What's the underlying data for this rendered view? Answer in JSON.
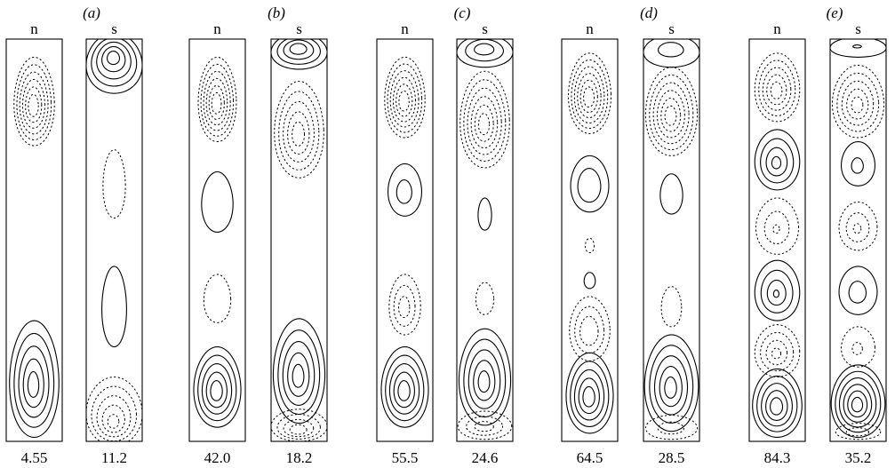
{
  "figure": {
    "panels": [
      {
        "label": "(a)",
        "cells": [
          {
            "head": "n",
            "value": "4.55",
            "cells": [
              {
                "style": "dash",
                "cy": 0.155,
                "rx": 0.36,
                "ry": 0.11,
                "n": 6,
                "minFrac": 0.25
              },
              {
                "style": "solid",
                "cy": 0.845,
                "rx": 0.44,
                "ry": 0.145,
                "n": 5,
                "minFrac": 0.22
              }
            ]
          },
          {
            "head": "s",
            "value": "11.2",
            "cells": [
              {
                "style": "solid",
                "cy": 0.06,
                "rx": 0.5,
                "ry": 0.075,
                "n": 5,
                "minFrac": 0.22,
                "shiftY": -0.35
              },
              {
                "style": "dash",
                "cy": 0.36,
                "rx": 0.2,
                "ry": 0.085,
                "n": 1,
                "minFrac": 1
              },
              {
                "style": "solid",
                "cy": 0.665,
                "rx": 0.22,
                "ry": 0.1,
                "n": 1,
                "minFrac": 1
              },
              {
                "style": "dash",
                "cy": 0.925,
                "rx": 0.5,
                "ry": 0.085,
                "n": 5,
                "minFrac": 0.2,
                "shiftY": 0.25
              }
            ]
          }
        ]
      },
      {
        "label": "(b)",
        "cells": [
          {
            "head": "n",
            "value": "42.0",
            "cells": [
              {
                "style": "dash",
                "cy": 0.15,
                "rx": 0.34,
                "ry": 0.105,
                "n": 6,
                "minFrac": 0.25
              },
              {
                "style": "solid",
                "cy": 0.405,
                "rx": 0.28,
                "ry": 0.075,
                "n": 1,
                "minFrac": 1
              },
              {
                "style": "dash",
                "cy": 0.645,
                "rx": 0.24,
                "ry": 0.06,
                "n": 1,
                "minFrac": 1
              },
              {
                "style": "solid",
                "cy": 0.865,
                "rx": 0.42,
                "ry": 0.1,
                "n": 5,
                "minFrac": 0.25
              }
            ]
          },
          {
            "head": "s",
            "value": "18.2",
            "cells": [
              {
                "style": "solid",
                "cy": 0.03,
                "rx": 0.5,
                "ry": 0.045,
                "n": 4,
                "minFrac": 0.3,
                "shiftY": -0.3
              },
              {
                "style": "dash",
                "cy": 0.225,
                "rx": 0.44,
                "ry": 0.12,
                "n": 5,
                "minFrac": 0.25
              },
              {
                "style": "solid",
                "cy": 0.825,
                "rx": 0.46,
                "ry": 0.13,
                "n": 5,
                "minFrac": 0.22
              },
              {
                "style": "dash",
                "cy": 0.96,
                "rx": 0.5,
                "ry": 0.04,
                "n": 4,
                "minFrac": 0.3,
                "shiftY": 0.25
              }
            ]
          }
        ]
      },
      {
        "label": "(c)",
        "cells": [
          {
            "head": "n",
            "value": "55.5",
            "cells": [
              {
                "style": "dash",
                "cy": 0.145,
                "rx": 0.36,
                "ry": 0.1,
                "n": 6,
                "minFrac": 0.25
              },
              {
                "style": "solid",
                "cy": 0.375,
                "rx": 0.3,
                "ry": 0.065,
                "n": 2,
                "minFrac": 0.45
              },
              {
                "style": "dash",
                "cy": 0.66,
                "rx": 0.28,
                "ry": 0.075,
                "n": 3,
                "minFrac": 0.35
              },
              {
                "style": "solid",
                "cy": 0.865,
                "rx": 0.42,
                "ry": 0.1,
                "n": 5,
                "minFrac": 0.25
              }
            ]
          },
          {
            "head": "s",
            "value": "24.6",
            "cells": [
              {
                "style": "solid",
                "cy": 0.03,
                "rx": 0.5,
                "ry": 0.04,
                "n": 3,
                "minFrac": 0.35,
                "shiftY": -0.3
              },
              {
                "style": "dash",
                "cy": 0.2,
                "rx": 0.44,
                "ry": 0.12,
                "n": 6,
                "minFrac": 0.22
              },
              {
                "style": "solid",
                "cy": 0.435,
                "rx": 0.12,
                "ry": 0.04,
                "n": 1,
                "minFrac": 1
              },
              {
                "style": "dash",
                "cy": 0.645,
                "rx": 0.16,
                "ry": 0.04,
                "n": 1,
                "minFrac": 1
              },
              {
                "style": "solid",
                "cy": 0.84,
                "rx": 0.46,
                "ry": 0.12,
                "n": 5,
                "minFrac": 0.22
              },
              {
                "style": "dash",
                "cy": 0.96,
                "rx": 0.48,
                "ry": 0.035,
                "n": 3,
                "minFrac": 0.35
              }
            ]
          }
        ]
      },
      {
        "label": "(d)",
        "cells": [
          {
            "head": "n",
            "value": "64.5",
            "cells": [
              {
                "style": "dash",
                "cy": 0.135,
                "rx": 0.38,
                "ry": 0.1,
                "n": 6,
                "minFrac": 0.25
              },
              {
                "style": "solid",
                "cy": 0.36,
                "rx": 0.34,
                "ry": 0.07,
                "n": 2,
                "minFrac": 0.6
              },
              {
                "style": "dash",
                "cy": 0.513,
                "rx": 0.08,
                "ry": 0.018,
                "n": 1,
                "minFrac": 1
              },
              {
                "style": "solid",
                "cy": 0.6,
                "rx": 0.1,
                "ry": 0.02,
                "n": 1,
                "minFrac": 1
              },
              {
                "style": "dash",
                "cy": 0.72,
                "rx": 0.36,
                "ry": 0.08,
                "n": 3,
                "minFrac": 0.45
              },
              {
                "style": "solid",
                "cy": 0.88,
                "rx": 0.42,
                "ry": 0.1,
                "n": 5,
                "minFrac": 0.25
              }
            ]
          },
          {
            "head": "s",
            "value": "28.5",
            "cells": [
              {
                "style": "solid",
                "cy": 0.03,
                "rx": 0.5,
                "ry": 0.04,
                "n": 2,
                "minFrac": 0.45,
                "shiftY": -0.3
              },
              {
                "style": "dash",
                "cy": 0.18,
                "rx": 0.46,
                "ry": 0.11,
                "n": 6,
                "minFrac": 0.22
              },
              {
                "style": "solid",
                "cy": 0.385,
                "rx": 0.2,
                "ry": 0.05,
                "n": 1,
                "minFrac": 1
              },
              {
                "style": "dash",
                "cy": 0.665,
                "rx": 0.18,
                "ry": 0.05,
                "n": 1,
                "minFrac": 1
              },
              {
                "style": "solid",
                "cy": 0.855,
                "rx": 0.48,
                "ry": 0.12,
                "n": 5,
                "minFrac": 0.22
              },
              {
                "style": "dash",
                "cy": 0.965,
                "rx": 0.46,
                "ry": 0.03,
                "n": 2,
                "minFrac": 0.5
              }
            ]
          }
        ]
      },
      {
        "label": "(e)",
        "cells": [
          {
            "head": "n",
            "value": "84.3",
            "cells": [
              {
                "style": "dash",
                "cy": 0.12,
                "rx": 0.4,
                "ry": 0.085,
                "n": 5,
                "minFrac": 0.25
              },
              {
                "style": "solid",
                "cy": 0.3,
                "rx": 0.4,
                "ry": 0.075,
                "n": 4,
                "minFrac": 0.2
              },
              {
                "style": "dash",
                "cy": 0.465,
                "rx": 0.38,
                "ry": 0.07,
                "n": 3,
                "minFrac": 0.15
              },
              {
                "style": "solid",
                "cy": 0.625,
                "rx": 0.4,
                "ry": 0.075,
                "n": 4,
                "minFrac": 0.12
              },
              {
                "style": "dash",
                "cy": 0.775,
                "rx": 0.4,
                "ry": 0.065,
                "n": 4,
                "minFrac": 0.2
              },
              {
                "style": "solid",
                "cy": 0.905,
                "rx": 0.44,
                "ry": 0.085,
                "n": 5,
                "minFrac": 0.25
              }
            ]
          },
          {
            "head": "s",
            "value": "35.2",
            "cells": [
              {
                "style": "solid",
                "cy": 0.02,
                "rx": 0.5,
                "ry": 0.025,
                "n": 2,
                "minFrac": 0.15,
                "shiftY": -0.2
              },
              {
                "style": "dash",
                "cy": 0.155,
                "rx": 0.46,
                "ry": 0.09,
                "n": 5,
                "minFrac": 0.22
              },
              {
                "style": "solid",
                "cy": 0.31,
                "rx": 0.3,
                "ry": 0.055,
                "n": 2,
                "minFrac": 0.35
              },
              {
                "style": "dash",
                "cy": 0.465,
                "rx": 0.34,
                "ry": 0.06,
                "n": 3,
                "minFrac": 0.2
              },
              {
                "style": "solid",
                "cy": 0.625,
                "rx": 0.34,
                "ry": 0.06,
                "n": 2,
                "minFrac": 0.45
              },
              {
                "style": "dash",
                "cy": 0.765,
                "rx": 0.3,
                "ry": 0.05,
                "n": 2,
                "minFrac": 0.3
              },
              {
                "style": "solid",
                "cy": 0.9,
                "rx": 0.48,
                "ry": 0.09,
                "n": 6,
                "minFrac": 0.2
              },
              {
                "style": "dash",
                "cy": 0.975,
                "rx": 0.4,
                "ry": 0.02,
                "n": 2,
                "minFrac": 0.5
              }
            ]
          }
        ]
      }
    ]
  }
}
